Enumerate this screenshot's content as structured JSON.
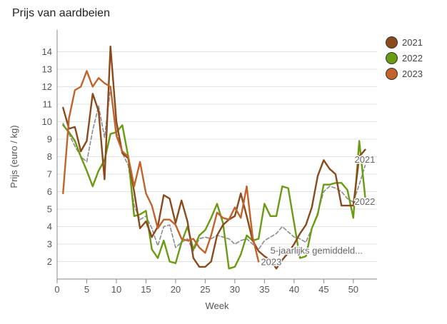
{
  "chart_data": {
    "type": "line",
    "title": "Prijs van aardbeien",
    "xlabel": "Week",
    "ylabel": "Prijs (euro / kg)",
    "xlim": [
      0,
      54
    ],
    "ylim": [
      1,
      15
    ],
    "xticks": [
      0,
      5,
      10,
      15,
      20,
      25,
      30,
      35,
      40,
      45,
      50
    ],
    "yticks": [
      2,
      3,
      4,
      5,
      6,
      7,
      8,
      9,
      10,
      11,
      12,
      13,
      14
    ],
    "series": [
      {
        "name": "2021",
        "color": "#8b4a1c",
        "dashed": false,
        "end_label": "2021",
        "x": [
          1,
          2,
          3,
          4,
          5,
          6,
          7,
          8,
          9,
          10,
          11,
          12,
          13,
          14,
          15,
          16,
          17,
          18,
          19,
          20,
          21,
          22,
          23,
          24,
          25,
          26,
          27,
          28,
          29,
          30,
          31,
          32,
          33,
          34,
          35,
          36,
          37,
          38,
          39,
          40,
          41,
          42,
          43,
          44,
          45,
          46,
          47,
          48,
          49,
          50,
          51,
          52
        ],
        "y": [
          10.8,
          9.6,
          9.7,
          8.3,
          8.9,
          11.6,
          10.6,
          6.7,
          14.3,
          10.0,
          8.2,
          7.9,
          6.0,
          3.9,
          4.3,
          3.4,
          4.0,
          5.8,
          5.6,
          4.2,
          5.5,
          4.3,
          2.2,
          1.7,
          1.7,
          2.0,
          3.5,
          4.1,
          4.4,
          4.6,
          5.9,
          4.6,
          3.2,
          2.6,
          2.3,
          2.1,
          1.6,
          2.1,
          2.5,
          3.0,
          3.6,
          4.1,
          5.1,
          6.9,
          7.8,
          7.3,
          7.0,
          5.2,
          5.2,
          5.2,
          8.0,
          8.4
        ]
      },
      {
        "name": "2022",
        "color": "#6a9b12",
        "dashed": false,
        "end_label": "2022",
        "x": [
          1,
          2,
          3,
          4,
          5,
          6,
          7,
          8,
          9,
          10,
          11,
          12,
          13,
          14,
          15,
          16,
          17,
          18,
          19,
          20,
          21,
          22,
          23,
          24,
          25,
          26,
          27,
          28,
          29,
          30,
          31,
          32,
          33,
          34,
          35,
          36,
          37,
          38,
          39,
          40,
          41,
          42,
          43,
          44,
          45,
          46,
          47,
          48,
          49,
          50,
          51,
          52
        ],
        "y": [
          9.8,
          9.4,
          8.9,
          8.0,
          7.2,
          6.3,
          7.2,
          7.8,
          9.3,
          9.4,
          9.8,
          8.0,
          4.6,
          4.7,
          4.9,
          2.7,
          2.2,
          3.2,
          2.0,
          1.9,
          3.1,
          4.0,
          2.7,
          3.5,
          3.8,
          4.5,
          5.3,
          4.2,
          1.6,
          1.7,
          2.4,
          3.5,
          3.2,
          3.3,
          5.3,
          4.6,
          4.6,
          6.3,
          6.2,
          4.2,
          2.2,
          2.3,
          3.9,
          4.7,
          6.4,
          6.4,
          6.5,
          6.5,
          6.1,
          4.5,
          8.9,
          5.7
        ]
      },
      {
        "name": "2023",
        "color": "#c1632a",
        "dashed": false,
        "end_label": "2023",
        "x": [
          1,
          2,
          3,
          4,
          5,
          6,
          7,
          8,
          9,
          10,
          11,
          12,
          13,
          14,
          15,
          16,
          17,
          18,
          19,
          20,
          21,
          22,
          23,
          24,
          25,
          26,
          27,
          28,
          29,
          30,
          31,
          32,
          33,
          34
        ],
        "y": [
          5.9,
          10.2,
          11.8,
          12.0,
          12.9,
          12.0,
          12.5,
          12.2,
          12.0,
          9.2,
          8.3,
          8.0,
          6.3,
          7.7,
          5.9,
          5.2,
          3.9,
          4.4,
          4.4,
          4.1,
          3.3,
          3.2,
          3.3,
          2.8,
          2.5,
          3.5,
          4.8,
          4.5,
          4.4,
          5.1,
          4.5,
          6.3,
          3.4,
          2.0
        ]
      },
      {
        "name": "5-jaarlijks gemiddeld...",
        "color": "#8c8c8c",
        "dashed": true,
        "end_label": "5-jaarlijks gemiddeld...",
        "x": [
          1,
          2,
          3,
          4,
          5,
          6,
          7,
          8,
          9,
          10,
          11,
          12,
          13,
          14,
          15,
          16,
          17,
          18,
          19,
          20,
          21,
          22,
          23,
          24,
          25,
          26,
          27,
          28,
          29,
          30,
          31,
          32,
          33,
          34,
          35,
          36,
          37,
          38,
          39,
          40,
          41,
          42,
          43,
          44,
          45,
          46,
          47,
          48,
          49,
          50,
          51,
          52
        ],
        "y": [
          9.9,
          9.3,
          8.6,
          8.0,
          7.7,
          9.5,
          10.9,
          9.1,
          11.9,
          9.4,
          8.2,
          7.5,
          5.2,
          4.4,
          4.6,
          3.9,
          2.9,
          4.0,
          4.1,
          2.8,
          3.1,
          3.3,
          2.6,
          3.3,
          3.4,
          3.3,
          3.5,
          3.4,
          3.3,
          3.0,
          3.2,
          3.3,
          3.0,
          2.7,
          3.2,
          3.4,
          3.6,
          4.0,
          3.7,
          3.4,
          3.3,
          3.1,
          3.9,
          4.8,
          6.0,
          6.3,
          6.2,
          6.0,
          5.6,
          5.4,
          6.4,
          7.5
        ]
      }
    ]
  }
}
